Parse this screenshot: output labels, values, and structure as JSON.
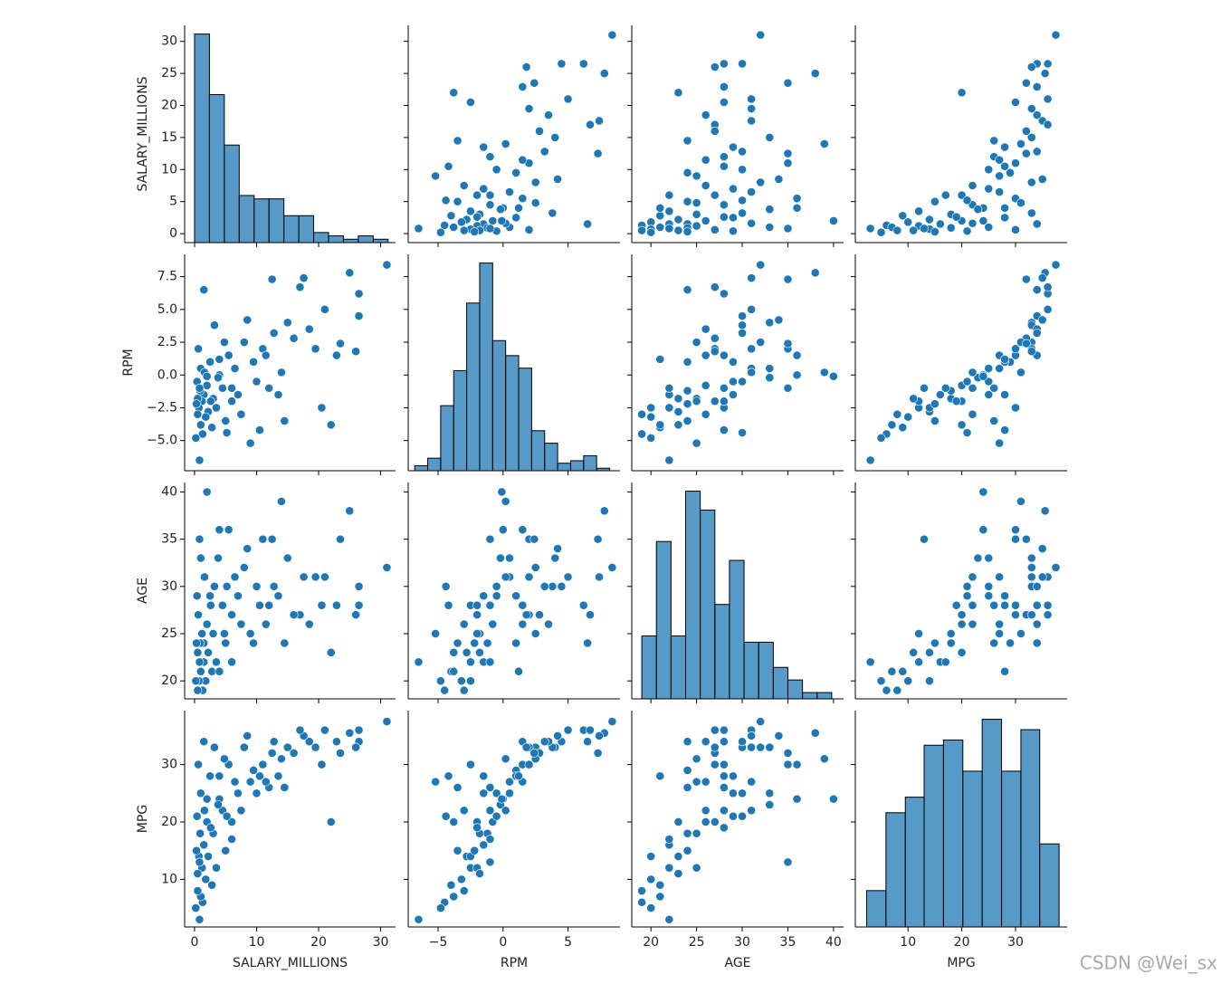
{
  "chart_data": {
    "type": "pairplot",
    "color": "#1f77b4",
    "watermark": "CSDN @Wei_sx",
    "variables": [
      {
        "name": "SALARY_MILLIONS",
        "lim": [
          -1.6,
          32.4
        ],
        "ylim": [
          -1.4,
          32.5
        ],
        "ticks": [
          0,
          10,
          20,
          30
        ],
        "yticks": [
          0,
          5,
          10,
          15,
          20,
          25,
          30
        ],
        "values": [
          31.0,
          26.5,
          26.5,
          25.0,
          22.9,
          21.0,
          17.6,
          17.0,
          15.0,
          14.0,
          12.5,
          12.0,
          11.0,
          10.5,
          10.0,
          9.5,
          8.0,
          7.5,
          7.0,
          6.5,
          6.0,
          5.5,
          5.0,
          4.5,
          4.0,
          3.5,
          3.2,
          3.0,
          2.8,
          2.5,
          2.2,
          2.0,
          1.8,
          1.5,
          1.5,
          1.3,
          1.2,
          1.0,
          1.0,
          0.9,
          0.8,
          0.7,
          0.6,
          0.5,
          0.5,
          0.4,
          0.3,
          0.2,
          18.5,
          19.5,
          20.5,
          22.0,
          16.0,
          13.5,
          9.0,
          8.5,
          11.5,
          6.0,
          4.8,
          3.8,
          2.6,
          1.6,
          0.8,
          14.5,
          5.2,
          12.8,
          23.5,
          26.0,
          2.0,
          4.0
        ],
        "hist": {
          "bins": [
            0,
            2.4,
            4.8,
            7.2,
            9.6,
            12,
            14.4,
            16.8,
            19.2,
            21.6,
            24,
            26.4,
            28.8,
            31.2
          ],
          "counts": [
            62,
            44,
            29,
            14,
            13,
            13,
            8,
            8,
            3,
            2,
            1,
            2,
            1
          ]
        }
      },
      {
        "name": "RPM",
        "lim": [
          -7.3,
          9.0
        ],
        "ylim": [
          -7.3,
          9.2
        ],
        "ticks": [
          {
            "value": -5,
            "label": "−5"
          },
          0,
          5
        ],
        "yticks": [
          {
            "value": -5,
            "label": "−5.0"
          },
          {
            "value": -2.5,
            "label": "−2.5"
          },
          {
            "value": 0,
            "label": "0.0"
          },
          2.5,
          {
            "value": 5,
            "label": "5.0"
          },
          7.5
        ],
        "values": [
          8.4,
          6.2,
          4.5,
          7.8,
          1.5,
          5.0,
          7.4,
          6.7,
          4.0,
          0.2,
          7.3,
          -1.0,
          2.0,
          -4.2,
          -0.5,
          1.0,
          2.5,
          -3.0,
          -1.5,
          0.5,
          -2.0,
          1.5,
          -3.5,
          -1.0,
          0.0,
          -2.5,
          3.8,
          -1.8,
          -4.0,
          1.0,
          -2.8,
          -0.8,
          -3.2,
          6.5,
          -1.5,
          -4.5,
          -2.0,
          0.5,
          -3.8,
          -1.2,
          -6.5,
          -2.5,
          2.0,
          -1.8,
          -3.0,
          -0.5,
          -2.2,
          -4.8,
          3.5,
          2.0,
          -2.5,
          -3.8,
          2.8,
          -1.5,
          -5.2,
          4.2,
          1.5,
          -1.0,
          2.5,
          -0.2,
          -2.0,
          0.2,
          -1.0,
          -3.5,
          -4.4,
          3.2,
          2.4,
          1.8,
          -0.1,
          1.2
        ],
        "hist": {
          "bins": [
            -6.8,
            -5.8,
            -4.8,
            -3.8,
            -2.8,
            -1.8,
            -0.8,
            0.2,
            1.2,
            2.2,
            3.2,
            4.2,
            5.2,
            6.2,
            7.2,
            8.2
          ],
          "counts": [
            2,
            5,
            26,
            40,
            67,
            83,
            52,
            46,
            41,
            16,
            11,
            3,
            4,
            6,
            1
          ]
        }
      },
      {
        "name": "AGE",
        "lim": [
          17.9,
          41.1
        ],
        "ylim": [
          18.1,
          41.0
        ],
        "ticks": [
          20,
          25,
          30,
          35,
          40
        ],
        "yticks": [
          20,
          25,
          30,
          35,
          40
        ],
        "values": [
          32,
          28,
          30,
          38,
          28,
          31,
          31,
          27,
          33,
          39,
          35,
          28,
          35,
          28,
          30,
          24,
          32,
          26,
          29,
          31,
          27,
          36,
          24,
          28,
          36,
          22,
          30,
          25,
          21,
          29,
          23,
          26,
          20,
          24,
          22,
          19,
          25,
          33,
          21,
          24,
          22,
          20,
          27,
          23,
          19,
          29,
          24,
          20,
          26,
          31,
          28,
          23,
          27,
          29,
          25,
          34,
          26,
          22,
          25,
          33,
          28,
          31,
          35,
          24,
          30,
          30,
          35,
          27,
          40,
          21
        ],
        "hist": {
          "bins": [
            19,
            20.6,
            22.2,
            23.8,
            25.4,
            27,
            28.6,
            30.2,
            31.8,
            33.4,
            35,
            36.6,
            38.2,
            39.8
          ],
          "counts": [
            10,
            25,
            10,
            33,
            30,
            15,
            22,
            9,
            9,
            5,
            3,
            1,
            1
          ]
        }
      },
      {
        "name": "MPG",
        "lim": [
          0.2,
          39.6
        ],
        "ylim": [
          1.7,
          39.4
        ],
        "ticks": [
          10,
          20,
          30
        ],
        "yticks": [
          10,
          20,
          30
        ],
        "values": [
          37.5,
          36,
          34,
          35.5,
          34,
          36,
          35,
          36,
          33,
          31,
          32,
          26,
          30,
          28,
          25,
          29,
          33,
          22,
          25,
          27,
          20,
          30,
          15,
          22,
          24,
          12,
          33,
          18,
          9,
          28,
          14,
          20,
          10,
          34,
          16,
          6,
          12,
          25,
          7,
          18,
          3,
          14,
          30,
          11,
          8,
          21,
          15,
          5,
          34,
          33,
          30,
          20,
          32,
          28,
          27,
          35,
          27,
          17,
          31,
          23,
          19,
          22,
          13,
          26,
          21,
          34,
          32,
          33,
          24,
          28
        ],
        "hist": {
          "bins": [
            2.3,
            5.9,
            9.5,
            13.0,
            16.6,
            20.2,
            23.8,
            27.4,
            31.0,
            34.5,
            38.1
          ],
          "counts": [
            7,
            22,
            25,
            35,
            36,
            30,
            40,
            30,
            38,
            16
          ]
        }
      }
    ]
  }
}
